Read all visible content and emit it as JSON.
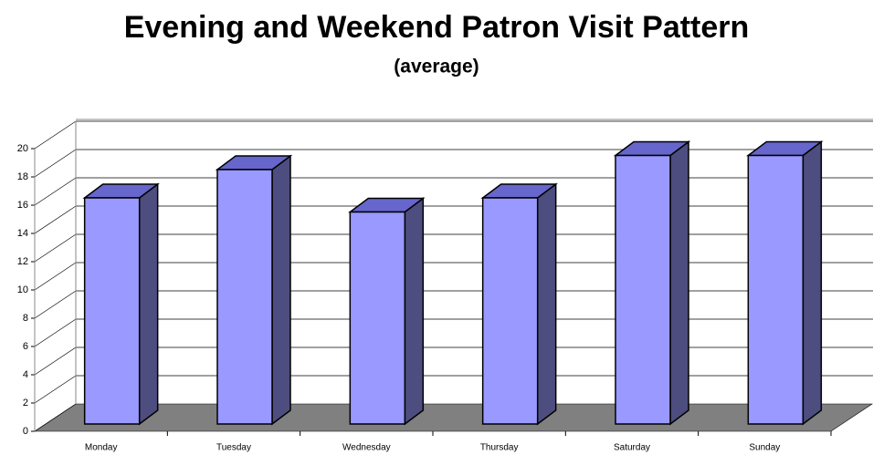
{
  "chart_data": {
    "type": "bar3d",
    "title": "Evening and Weekend Patron Visit Pattern",
    "subtitle": "(average)",
    "categories": [
      "Monday",
      "Tuesday",
      "Wednesday",
      "Thursday",
      "Saturday",
      "Sunday"
    ],
    "values": [
      16,
      18,
      15,
      16,
      19,
      19
    ],
    "color": "#9999ff",
    "ylim": [
      0,
      20
    ],
    "yticks": [
      0,
      2,
      4,
      6,
      8,
      10,
      12,
      14,
      16,
      18,
      20
    ],
    "grid": true
  }
}
